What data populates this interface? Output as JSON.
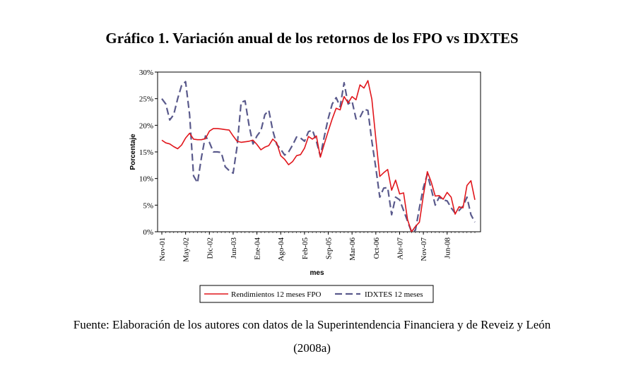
{
  "title": "Gráfico 1. Variación anual de los retornos de los FPO vs IDXTES",
  "source_line1": "Fuente: Elaboración de los autores con datos de la Superintendencia Financiera y de Reveiz y León",
  "source_line2": "(2008a)",
  "colors": {
    "fpo": "#e1161c",
    "idxtes": "#5a5a8c"
  },
  "chart_data": {
    "type": "line",
    "title": "Gráfico 1. Variación anual de los retornos de los FPO vs IDXTES",
    "xlabel": "mes",
    "ylabel": "Porcentaje",
    "ylim": [
      0,
      30
    ],
    "yticks": [
      "0%",
      "5%",
      "10%",
      "15%",
      "20%",
      "25%",
      "30%"
    ],
    "x_tick_labels": [
      "Nov-01",
      "May-02",
      "Dic-02",
      "Jun-03",
      "Ene-04",
      "Ago-04",
      "Feb-05",
      "Sep-05",
      "Mar-06",
      "Oct-06",
      "Abr-07",
      "Nov-07",
      "Jun-08"
    ],
    "legend": "bottom",
    "series": [
      {
        "name": "Rendimientos 12 meses FPO",
        "style": "solid",
        "values": [
          17.2,
          16.7,
          16.5,
          16.0,
          15.6,
          16.3,
          17.6,
          18.5,
          17.4,
          17.3,
          17.3,
          17.5,
          18.9,
          19.4,
          19.4,
          19.3,
          19.2,
          19.1,
          18.0,
          17.0,
          16.8,
          16.9,
          17.0,
          17.2,
          16.4,
          15.4,
          15.9,
          16.2,
          17.4,
          16.7,
          14.3,
          13.6,
          12.6,
          13.2,
          14.3,
          14.5,
          15.7,
          17.9,
          17.4,
          18.0,
          14.0,
          16.5,
          18.9,
          21.2,
          23.2,
          22.9,
          25.4,
          24.2,
          25.4,
          24.8,
          27.6,
          27.0,
          28.4,
          24.9,
          17.5,
          10.4,
          11.1,
          11.7,
          7.8,
          9.7,
          7.1,
          7.3,
          2.3,
          0.0,
          1.0,
          1.8,
          6.8,
          11.3,
          9.3,
          6.7,
          6.8,
          6.1,
          7.4,
          6.5,
          3.3,
          4.7,
          4.5,
          8.7,
          9.6,
          6.0
        ]
      },
      {
        "name": "IDXTES 12 meses",
        "style": "dashed",
        "values": [
          25.0,
          24.0,
          21.0,
          22.0,
          25.0,
          27.5,
          28.2,
          22.0,
          10.5,
          9.2,
          14.0,
          18.0,
          16.8,
          15.0,
          15.0,
          14.9,
          12.2,
          11.5,
          11.0,
          16.0,
          24.3,
          24.6,
          20.0,
          16.5,
          18.0,
          19.0,
          22.0,
          22.8,
          19.0,
          16.4,
          15.5,
          14.4,
          15.0,
          16.3,
          17.8,
          17.6,
          17.0,
          18.8,
          19.1,
          17.0,
          14.2,
          17.9,
          21.3,
          24.0,
          25.2,
          23.5,
          28.0,
          24.0,
          24.5,
          21.2,
          21.5,
          23.0,
          22.8,
          17.0,
          12.0,
          6.5,
          8.2,
          8.3,
          3.2,
          6.5,
          6.0,
          4.0,
          2.0,
          0.0,
          0.3,
          4.5,
          8.3,
          10.8,
          8.0,
          5.0,
          6.5,
          6.0,
          5.8,
          4.5,
          3.5,
          4.0,
          4.8,
          6.5,
          3.2,
          1.8
        ]
      }
    ]
  }
}
